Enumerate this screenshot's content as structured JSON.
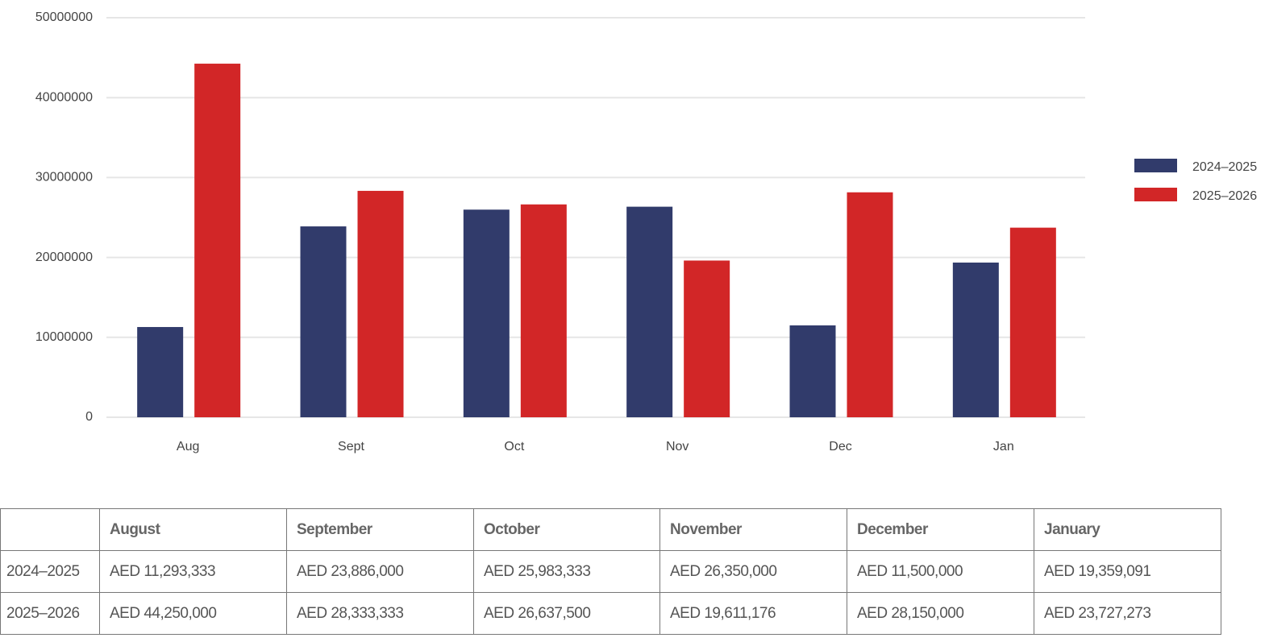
{
  "chart_data": {
    "type": "bar",
    "categories": [
      "Aug",
      "Sept",
      "Oct",
      "Nov",
      "Dec",
      "Jan"
    ],
    "series": [
      {
        "name": "2024–2025",
        "color": "#313b6b",
        "values": [
          11293333,
          23886000,
          25983333,
          26350000,
          11500000,
          19359091
        ]
      },
      {
        "name": "2025–2026",
        "color": "#d22627",
        "values": [
          44250000,
          28333333,
          26637500,
          19611176,
          28150000,
          23727273
        ]
      }
    ],
    "ylim": [
      0,
      50000000
    ],
    "yticks": [
      0,
      10000000,
      20000000,
      30000000,
      40000000,
      50000000
    ],
    "grid": true,
    "legend": "right"
  },
  "table": {
    "header": [
      "August",
      "September",
      "October",
      "November",
      "December",
      "January"
    ],
    "rows": [
      [
        "2024–2025",
        "AED 11,293,333",
        "AED 23,886,000",
        "AED 25,983,333",
        "AED 26,350,000",
        "AED 11,500,000",
        "AED 19,359,091"
      ],
      [
        "2025–2026",
        "AED 44,250,000",
        "AED 28,333,333",
        "AED 26,637,500",
        "AED 19,611,176",
        "AED 28,150,000",
        "AED 23,727,273"
      ]
    ]
  }
}
